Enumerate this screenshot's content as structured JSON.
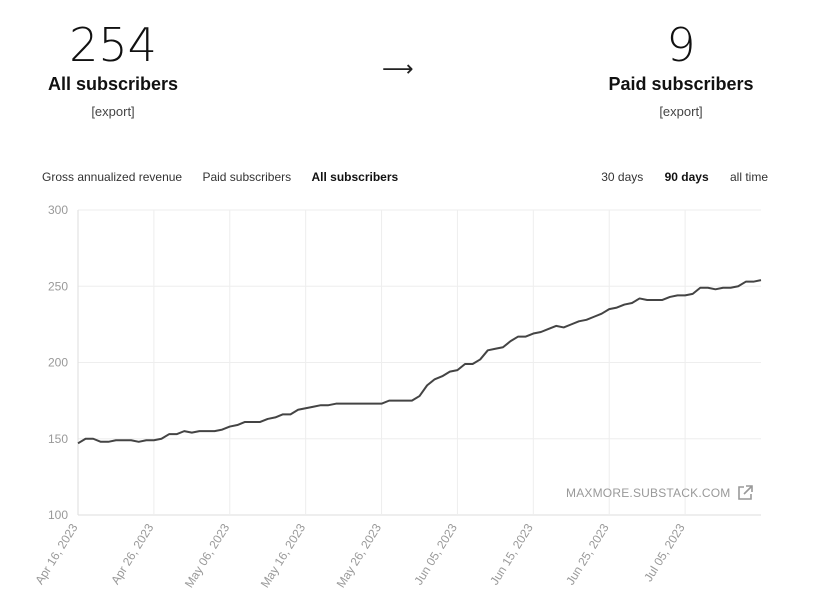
{
  "stats": {
    "left": {
      "number": "254",
      "label": "All subscribers",
      "export": "[export]"
    },
    "arrow": "⟶",
    "right": {
      "number": "9",
      "label": "Paid subscribers",
      "export": "[export]"
    }
  },
  "tabs": [
    {
      "label": "Gross annualized revenue",
      "active": false
    },
    {
      "label": "Paid subscribers",
      "active": false
    },
    {
      "label": "All subscribers",
      "active": true
    }
  ],
  "ranges": [
    {
      "label": "30 days",
      "active": false
    },
    {
      "label": "90 days",
      "active": true
    },
    {
      "label": "all time",
      "active": false
    }
  ],
  "watermark": "MAXMORE.SUBSTACK.COM",
  "icons": {
    "watermark": "external-link-icon"
  },
  "colors": {
    "line": "#444444",
    "grid": "#eeeeee",
    "tick": "#999999"
  },
  "chart_data": {
    "type": "line",
    "title": "",
    "xlabel": "",
    "ylabel": "",
    "ylim": [
      100,
      300
    ],
    "yticks": [
      100,
      150,
      200,
      250,
      300
    ],
    "xlim": [
      "2023-04-16",
      "2023-07-15"
    ],
    "xtick_labels": [
      "Apr 16, 2023",
      "Apr 26, 2023",
      "May 06, 2023",
      "May 16, 2023",
      "May 26, 2023",
      "Jun 05, 2023",
      "Jun 15, 2023",
      "Jun 25, 2023",
      "Jul 05, 2023"
    ],
    "grid": true,
    "series": [
      {
        "x": [
          "2023-04-16",
          "2023-04-17",
          "2023-04-18",
          "2023-04-19",
          "2023-04-20",
          "2023-04-21",
          "2023-04-22",
          "2023-04-23",
          "2023-04-24",
          "2023-04-25",
          "2023-04-26",
          "2023-04-27",
          "2023-04-28",
          "2023-04-29",
          "2023-04-30",
          "2023-05-01",
          "2023-05-02",
          "2023-05-03",
          "2023-05-04",
          "2023-05-05",
          "2023-05-06",
          "2023-05-07",
          "2023-05-08",
          "2023-05-09",
          "2023-05-10",
          "2023-05-11",
          "2023-05-12",
          "2023-05-13",
          "2023-05-14",
          "2023-05-15",
          "2023-05-16",
          "2023-05-17",
          "2023-05-18",
          "2023-05-19",
          "2023-05-20",
          "2023-05-21",
          "2023-05-22",
          "2023-05-23",
          "2023-05-24",
          "2023-05-25",
          "2023-05-26",
          "2023-05-27",
          "2023-05-28",
          "2023-05-29",
          "2023-05-30",
          "2023-05-31",
          "2023-06-01",
          "2023-06-02",
          "2023-06-03",
          "2023-06-04",
          "2023-06-05",
          "2023-06-06",
          "2023-06-07",
          "2023-06-08",
          "2023-06-09",
          "2023-06-10",
          "2023-06-11",
          "2023-06-12",
          "2023-06-13",
          "2023-06-14",
          "2023-06-15",
          "2023-06-16",
          "2023-06-17",
          "2023-06-18",
          "2023-06-19",
          "2023-06-20",
          "2023-06-21",
          "2023-06-22",
          "2023-06-23",
          "2023-06-24",
          "2023-06-25",
          "2023-06-26",
          "2023-06-27",
          "2023-06-28",
          "2023-06-29",
          "2023-06-30",
          "2023-07-01",
          "2023-07-02",
          "2023-07-03",
          "2023-07-04",
          "2023-07-05",
          "2023-07-06",
          "2023-07-07",
          "2023-07-08",
          "2023-07-09",
          "2023-07-10",
          "2023-07-11",
          "2023-07-12",
          "2023-07-13",
          "2023-07-14",
          "2023-07-15"
        ],
        "y": [
          147,
          150,
          150,
          148,
          148,
          149,
          149,
          149,
          148,
          149,
          149,
          150,
          153,
          153,
          155,
          154,
          155,
          155,
          155,
          156,
          158,
          159,
          161,
          161,
          161,
          163,
          164,
          166,
          166,
          169,
          170,
          171,
          172,
          172,
          173,
          173,
          173,
          173,
          173,
          173,
          173,
          175,
          175,
          175,
          175,
          178,
          185,
          189,
          191,
          194,
          195,
          199,
          199,
          202,
          208,
          209,
          210,
          214,
          217,
          217,
          219,
          220,
          222,
          224,
          223,
          225,
          227,
          228,
          230,
          232,
          235,
          236,
          238,
          239,
          242,
          241,
          241,
          241,
          243,
          244,
          244,
          245,
          249,
          249,
          248,
          249,
          249,
          250,
          253,
          253,
          254
        ]
      }
    ]
  }
}
